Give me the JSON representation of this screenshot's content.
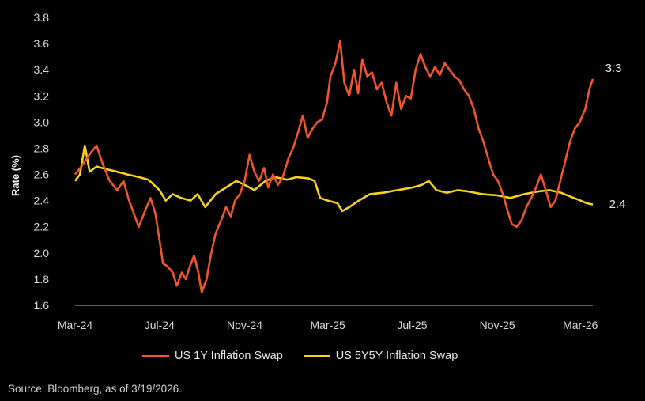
{
  "chart_data": {
    "type": "line",
    "ylabel": "Rate (%)",
    "ylim": [
      1.6,
      3.8
    ],
    "yticks": [
      "1.6",
      "1.8",
      "2.0",
      "2.2",
      "2.4",
      "2.6",
      "2.8",
      "3.0",
      "3.2",
      "3.4",
      "3.6",
      "3.8"
    ],
    "xlim": [
      "2024-03-01",
      "2026-03-19"
    ],
    "xticks": [
      {
        "date": "2024-03-01",
        "label": "Mar-24"
      },
      {
        "date": "2024-07-01",
        "label": "Jul-24"
      },
      {
        "date": "2024-11-01",
        "label": "Nov-24"
      },
      {
        "date": "2025-03-01",
        "label": "Mar-25"
      },
      {
        "date": "2025-07-01",
        "label": "Jul-25"
      },
      {
        "date": "2025-11-01",
        "label": "Nov-25"
      },
      {
        "date": "2026-03-01",
        "label": "Mar-26"
      }
    ],
    "grid": false,
    "legend_position": "bottom",
    "series": [
      {
        "name": "US 1Y Inflation Swap",
        "color": "#f0562a",
        "end_label": "3.3",
        "points": [
          [
            "2024-03-01",
            2.6
          ],
          [
            "2024-03-10",
            2.66
          ],
          [
            "2024-03-20",
            2.74
          ],
          [
            "2024-04-01",
            2.82
          ],
          [
            "2024-04-10",
            2.68
          ],
          [
            "2024-04-20",
            2.55
          ],
          [
            "2024-05-01",
            2.48
          ],
          [
            "2024-05-10",
            2.55
          ],
          [
            "2024-05-18",
            2.4
          ],
          [
            "2024-05-25",
            2.3
          ],
          [
            "2024-06-01",
            2.2
          ],
          [
            "2024-06-10",
            2.32
          ],
          [
            "2024-06-18",
            2.42
          ],
          [
            "2024-06-25",
            2.3
          ],
          [
            "2024-07-01",
            2.1
          ],
          [
            "2024-07-06",
            1.92
          ],
          [
            "2024-07-12",
            1.9
          ],
          [
            "2024-07-20",
            1.85
          ],
          [
            "2024-07-26",
            1.75
          ],
          [
            "2024-08-02",
            1.85
          ],
          [
            "2024-08-08",
            1.8
          ],
          [
            "2024-08-14",
            1.9
          ],
          [
            "2024-08-20",
            1.98
          ],
          [
            "2024-08-26",
            1.85
          ],
          [
            "2024-08-31",
            1.7
          ],
          [
            "2024-09-07",
            1.8
          ],
          [
            "2024-09-13",
            1.98
          ],
          [
            "2024-09-20",
            2.15
          ],
          [
            "2024-09-28",
            2.25
          ],
          [
            "2024-10-05",
            2.35
          ],
          [
            "2024-10-12",
            2.28
          ],
          [
            "2024-10-18",
            2.4
          ],
          [
            "2024-10-25",
            2.45
          ],
          [
            "2024-11-01",
            2.55
          ],
          [
            "2024-11-08",
            2.75
          ],
          [
            "2024-11-15",
            2.62
          ],
          [
            "2024-11-22",
            2.55
          ],
          [
            "2024-11-29",
            2.65
          ],
          [
            "2024-12-05",
            2.5
          ],
          [
            "2024-12-12",
            2.6
          ],
          [
            "2024-12-19",
            2.52
          ],
          [
            "2024-12-26",
            2.58
          ],
          [
            "2025-01-03",
            2.72
          ],
          [
            "2025-01-10",
            2.8
          ],
          [
            "2025-01-17",
            2.92
          ],
          [
            "2025-01-24",
            3.05
          ],
          [
            "2025-01-31",
            2.88
          ],
          [
            "2025-02-07",
            2.95
          ],
          [
            "2025-02-14",
            3.0
          ],
          [
            "2025-02-21",
            3.02
          ],
          [
            "2025-02-28",
            3.15
          ],
          [
            "2025-03-05",
            3.35
          ],
          [
            "2025-03-12",
            3.45
          ],
          [
            "2025-03-19",
            3.62
          ],
          [
            "2025-03-25",
            3.3
          ],
          [
            "2025-04-01",
            3.2
          ],
          [
            "2025-04-08",
            3.4
          ],
          [
            "2025-04-14",
            3.22
          ],
          [
            "2025-04-20",
            3.48
          ],
          [
            "2025-04-27",
            3.35
          ],
          [
            "2025-05-04",
            3.38
          ],
          [
            "2025-05-11",
            3.25
          ],
          [
            "2025-05-18",
            3.3
          ],
          [
            "2025-05-25",
            3.15
          ],
          [
            "2025-06-01",
            3.05
          ],
          [
            "2025-06-08",
            3.3
          ],
          [
            "2025-06-15",
            3.1
          ],
          [
            "2025-06-22",
            3.2
          ],
          [
            "2025-06-29",
            3.18
          ],
          [
            "2025-07-06",
            3.4
          ],
          [
            "2025-07-13",
            3.52
          ],
          [
            "2025-07-20",
            3.42
          ],
          [
            "2025-07-27",
            3.35
          ],
          [
            "2025-08-03",
            3.42
          ],
          [
            "2025-08-10",
            3.36
          ],
          [
            "2025-08-17",
            3.45
          ],
          [
            "2025-08-24",
            3.4
          ],
          [
            "2025-08-31",
            3.35
          ],
          [
            "2025-09-07",
            3.32
          ],
          [
            "2025-09-14",
            3.25
          ],
          [
            "2025-09-21",
            3.2
          ],
          [
            "2025-09-28",
            3.1
          ],
          [
            "2025-10-05",
            2.95
          ],
          [
            "2025-10-12",
            2.85
          ],
          [
            "2025-10-19",
            2.72
          ],
          [
            "2025-10-26",
            2.6
          ],
          [
            "2025-11-02",
            2.55
          ],
          [
            "2025-11-09",
            2.45
          ],
          [
            "2025-11-16",
            2.32
          ],
          [
            "2025-11-22",
            2.22
          ],
          [
            "2025-11-29",
            2.2
          ],
          [
            "2025-12-06",
            2.25
          ],
          [
            "2025-12-13",
            2.35
          ],
          [
            "2025-12-20",
            2.42
          ],
          [
            "2025-12-27",
            2.5
          ],
          [
            "2026-01-03",
            2.6
          ],
          [
            "2026-01-10",
            2.48
          ],
          [
            "2026-01-17",
            2.35
          ],
          [
            "2026-01-24",
            2.4
          ],
          [
            "2026-01-31",
            2.55
          ],
          [
            "2026-02-07",
            2.7
          ],
          [
            "2026-02-14",
            2.85
          ],
          [
            "2026-02-21",
            2.95
          ],
          [
            "2026-02-28",
            3.0
          ],
          [
            "2026-03-08",
            3.1
          ],
          [
            "2026-03-14",
            3.25
          ],
          [
            "2026-03-19",
            3.33
          ]
        ]
      },
      {
        "name": "US 5Y5Y Inflation Swap",
        "color": "#f5d31c",
        "end_label": "2.4",
        "points": [
          [
            "2024-03-01",
            2.55
          ],
          [
            "2024-03-08",
            2.6
          ],
          [
            "2024-03-15",
            2.82
          ],
          [
            "2024-03-22",
            2.62
          ],
          [
            "2024-04-01",
            2.66
          ],
          [
            "2024-04-15",
            2.64
          ],
          [
            "2024-05-01",
            2.62
          ],
          [
            "2024-05-15",
            2.6
          ],
          [
            "2024-06-01",
            2.58
          ],
          [
            "2024-06-15",
            2.56
          ],
          [
            "2024-07-01",
            2.48
          ],
          [
            "2024-07-10",
            2.4
          ],
          [
            "2024-07-20",
            2.45
          ],
          [
            "2024-08-01",
            2.42
          ],
          [
            "2024-08-15",
            2.4
          ],
          [
            "2024-08-25",
            2.45
          ],
          [
            "2024-09-05",
            2.35
          ],
          [
            "2024-09-20",
            2.45
          ],
          [
            "2024-10-05",
            2.5
          ],
          [
            "2024-10-20",
            2.55
          ],
          [
            "2024-11-01",
            2.52
          ],
          [
            "2024-11-15",
            2.48
          ],
          [
            "2024-12-01",
            2.55
          ],
          [
            "2024-12-15",
            2.58
          ],
          [
            "2025-01-01",
            2.56
          ],
          [
            "2025-01-15",
            2.58
          ],
          [
            "2025-02-01",
            2.57
          ],
          [
            "2025-02-10",
            2.55
          ],
          [
            "2025-02-18",
            2.42
          ],
          [
            "2025-03-01",
            2.4
          ],
          [
            "2025-03-15",
            2.38
          ],
          [
            "2025-03-22",
            2.32
          ],
          [
            "2025-04-01",
            2.35
          ],
          [
            "2025-04-15",
            2.4
          ],
          [
            "2025-05-01",
            2.45
          ],
          [
            "2025-05-20",
            2.46
          ],
          [
            "2025-06-10",
            2.48
          ],
          [
            "2025-07-01",
            2.5
          ],
          [
            "2025-07-15",
            2.52
          ],
          [
            "2025-07-25",
            2.55
          ],
          [
            "2025-08-05",
            2.48
          ],
          [
            "2025-08-20",
            2.46
          ],
          [
            "2025-09-05",
            2.48
          ],
          [
            "2025-09-20",
            2.47
          ],
          [
            "2025-10-10",
            2.45
          ],
          [
            "2025-11-01",
            2.44
          ],
          [
            "2025-11-20",
            2.42
          ],
          [
            "2025-12-10",
            2.45
          ],
          [
            "2025-12-30",
            2.47
          ],
          [
            "2026-01-15",
            2.48
          ],
          [
            "2026-02-01",
            2.46
          ],
          [
            "2026-02-15",
            2.43
          ],
          [
            "2026-03-01",
            2.4
          ],
          [
            "2026-03-10",
            2.38
          ],
          [
            "2026-03-19",
            2.37
          ]
        ]
      }
    ],
    "source": "Source: Bloomberg, as of 3/19/2026."
  }
}
